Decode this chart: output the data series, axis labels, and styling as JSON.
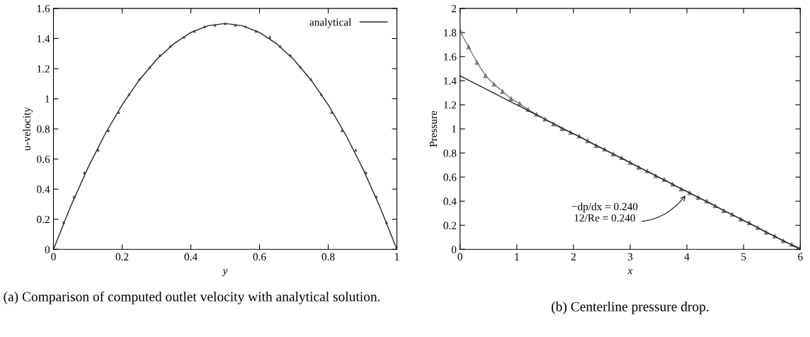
{
  "chart_data": [
    {
      "type": "line",
      "xlabel": "y",
      "ylabel": "u-velocity",
      "xlim": [
        0,
        1
      ],
      "ylim": [
        0,
        1.6
      ],
      "xticks": [
        0,
        0.2,
        0.4,
        0.6,
        0.8,
        1
      ],
      "yticks": [
        0,
        0.2,
        0.4,
        0.6,
        0.8,
        1,
        1.2,
        1.4,
        1.6
      ],
      "grid": false,
      "legend": "top right",
      "series": [
        {
          "type": "scatter",
          "marker": "triangle",
          "color": "#444444",
          "x": [
            0.03,
            0.06,
            0.09,
            0.13,
            0.16,
            0.19,
            0.22,
            0.25,
            0.28,
            0.31,
            0.34,
            0.38,
            0.41,
            0.44,
            0.47,
            0.5,
            0.53,
            0.56,
            0.59,
            0.63,
            0.66,
            0.69,
            0.72,
            0.75,
            0.78,
            0.81,
            0.84,
            0.88,
            0.91,
            0.94,
            0.97,
            1
          ],
          "values": [
            0.18,
            0.35,
            0.51,
            0.66,
            0.79,
            0.91,
            1.03,
            1.13,
            1.21,
            1.29,
            1.35,
            1.41,
            1.45,
            1.48,
            1.49,
            1.5,
            1.49,
            1.48,
            1.45,
            1.41,
            1.35,
            1.29,
            1.21,
            1.13,
            1.03,
            0.91,
            0.79,
            0.66,
            0.51,
            0.35,
            0.18,
            0
          ]
        },
        {
          "name": "analytical",
          "marker": "none",
          "color": "#222222",
          "x": [
            0,
            0.05,
            0.1,
            0.15,
            0.2,
            0.25,
            0.3,
            0.35,
            0.4,
            0.45,
            0.5,
            0.55,
            0.6,
            0.65,
            0.7,
            0.75,
            0.8,
            0.85,
            0.9,
            0.95,
            1
          ],
          "values": [
            0,
            0.285,
            0.54,
            0.765,
            0.96,
            1.125,
            1.26,
            1.365,
            1.44,
            1.485,
            1.5,
            1.485,
            1.44,
            1.365,
            1.26,
            1.125,
            0.96,
            0.765,
            0.54,
            0.285,
            0
          ]
        }
      ],
      "annotations": [
        "(a) Comparison of computed outlet velocity with analytical solution."
      ]
    },
    {
      "type": "line",
      "xlabel": "x",
      "ylabel": "Pressure",
      "xlim": [
        0,
        6
      ],
      "ylim": [
        0,
        2
      ],
      "xticks": [
        0,
        1,
        2,
        3,
        4,
        5,
        6
      ],
      "yticks": [
        0,
        0.2,
        0.4,
        0.6,
        0.8,
        1,
        1.2,
        1.4,
        1.6,
        1.8,
        2
      ],
      "grid": false,
      "series": [
        {
          "marker": "triangle",
          "color": "#777777",
          "x": [
            0,
            0.15,
            0.3,
            0.45,
            0.6,
            0.75,
            0.9,
            1.05,
            1.2,
            1.35,
            1.5,
            1.65,
            1.8,
            1.95,
            2.1,
            2.25,
            2.4,
            2.55,
            2.7,
            2.85,
            3.0,
            3.15,
            3.3,
            3.45,
            3.6,
            3.75,
            3.9,
            4.05,
            4.2,
            4.35,
            4.5,
            4.65,
            4.8,
            4.95,
            5.1,
            5.25,
            5.4,
            5.55,
            5.7,
            5.85,
            6
          ],
          "values": [
            1.81,
            1.68,
            1.55,
            1.44,
            1.37,
            1.31,
            1.25,
            1.21,
            1.16,
            1.12,
            1.08,
            1.04,
            1.0,
            0.97,
            0.94,
            0.9,
            0.86,
            0.83,
            0.79,
            0.76,
            0.72,
            0.68,
            0.65,
            0.61,
            0.58,
            0.54,
            0.5,
            0.47,
            0.43,
            0.4,
            0.36,
            0.32,
            0.29,
            0.25,
            0.22,
            0.18,
            0.14,
            0.11,
            0.07,
            0.04,
            0.01
          ]
        },
        {
          "marker": "none",
          "color": "#222222",
          "x": [
            0,
            6
          ],
          "values": [
            1.44,
            0
          ]
        }
      ],
      "annotations": [
        {
          "text": "−dp/dx = 0.240\n12/Re = 0.240",
          "x": 4.0,
          "y": 0.46
        },
        "(b) Centerline pressure drop."
      ]
    }
  ]
}
